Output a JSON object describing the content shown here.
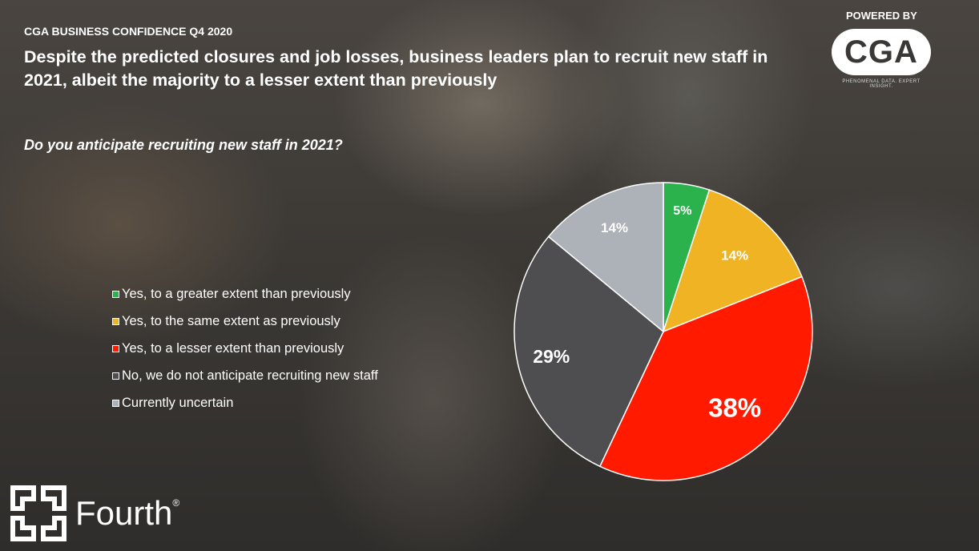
{
  "header": {
    "eyebrow": "CGA BUSINESS CONFIDENCE Q4 2020",
    "headline": "Despite the predicted closures and job losses, business leaders plan to recruit new staff in 2021, albeit the majority to a lesser extent than previously",
    "question": "Do you anticipate recruiting new staff in 2021?"
  },
  "branding": {
    "powered_by": "POWERED BY",
    "cga_logo": "CGA",
    "cga_tagline": "PHENOMENAL DATA. EXPERT INSIGHT.",
    "fourth_logo": "Fourth",
    "fourth_mark": "®"
  },
  "chart_data": {
    "type": "pie",
    "title": "Do you anticipate recruiting new staff in 2021?",
    "legend_placement": "left",
    "slices": [
      {
        "label": "Yes, to a greater extent than previously",
        "value": 5,
        "display": "5%",
        "color": "#2bb24c"
      },
      {
        "label": "Yes, to the same extent as previously",
        "value": 14,
        "display": "14%",
        "color": "#f0b323"
      },
      {
        "label": "Yes, to a lesser extent than previously",
        "value": 38,
        "display": "38%",
        "color": "#ff1a00"
      },
      {
        "label": "No, we do not anticipate recruiting new staff",
        "value": 29,
        "display": "29%",
        "color": "#4e4e50"
      },
      {
        "label": "Currently uncertain",
        "value": 14,
        "display": "14%",
        "color": "#adb1b8"
      }
    ]
  }
}
